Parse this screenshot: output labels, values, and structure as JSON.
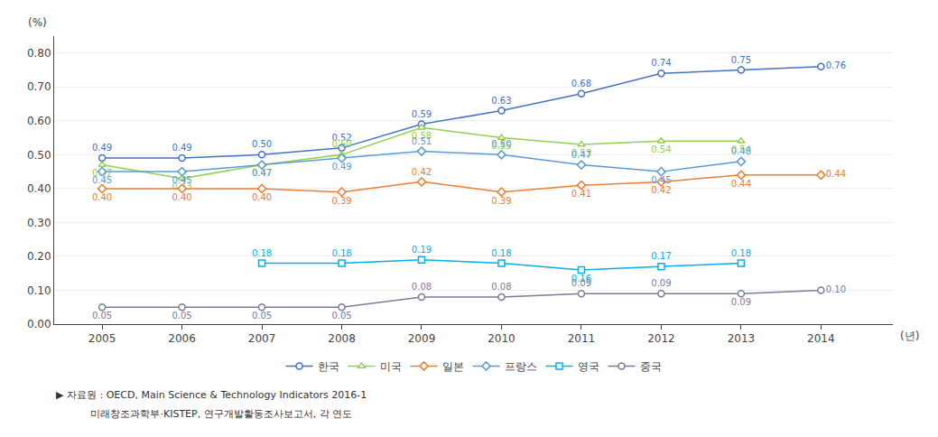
{
  "chart_data": {
    "type": "line",
    "ylabel": "(%)",
    "xlabel": "(년)",
    "annotations": [
      "▶ 자료원 : OECD, Main Science & Technology Indicators 2016-1",
      "           미래창조과학부·KISTEP, 연구개발활동조사보고서, 각 연도"
    ],
    "x": [
      2005,
      2006,
      2007,
      2008,
      2009,
      2010,
      2011,
      2012,
      2013,
      2014
    ],
    "xlim": [
      2004.4,
      2014.9
    ],
    "xticks": [
      2005,
      2006,
      2007,
      2008,
      2009,
      2010,
      2011,
      2012,
      2013,
      2014
    ],
    "ylim": [
      0.0,
      0.85
    ],
    "yticks": [
      {
        "value": 0.0,
        "label": "0.00"
      },
      {
        "value": 0.1,
        "label": "0.10"
      },
      {
        "value": 0.2,
        "label": "0.20"
      },
      {
        "value": 0.3,
        "label": "0.30"
      },
      {
        "value": 0.4,
        "label": "0.40"
      },
      {
        "value": 0.5,
        "label": "0.50"
      },
      {
        "value": 0.6,
        "label": "0.60"
      },
      {
        "value": 0.7,
        "label": "0.70"
      },
      {
        "value": 0.8,
        "label": "0.80"
      }
    ],
    "grid": "y",
    "legend": "bottom",
    "data_labels": true,
    "series": [
      {
        "name": "한국",
        "color": "#4472C4",
        "marker": "circle",
        "values": [
          0.49,
          0.49,
          0.5,
          0.52,
          0.59,
          0.63,
          0.68,
          0.74,
          0.75,
          0.76
        ],
        "value_labels": [
          "0.49",
          "0.49",
          "0.50",
          "0.52",
          "0.59",
          "0.63",
          "0.68",
          "0.74",
          "0.75",
          "0.76"
        ]
      },
      {
        "name": "미국",
        "color": "#92D050",
        "marker": "triangle-up",
        "values": [
          0.47,
          0.43,
          0.47,
          0.5,
          0.58,
          0.55,
          0.53,
          0.54,
          0.54,
          null
        ],
        "value_labels": [
          "0.47",
          "0.43",
          "0.47",
          "0.50",
          "0.58",
          "0.55",
          "0.53",
          "0.54",
          "0.54",
          null
        ]
      },
      {
        "name": "일본",
        "color": "#ED7D31",
        "marker": "diamond",
        "values": [
          0.4,
          0.4,
          0.4,
          0.39,
          0.42,
          0.39,
          0.41,
          0.42,
          0.44,
          0.44
        ],
        "value_labels": [
          "0.40",
          "0.40",
          "0.40",
          "0.39",
          "0.42",
          "0.39",
          "0.41",
          "0.42",
          "0.44",
          "0.44"
        ]
      },
      {
        "name": "프랑스",
        "color": "#5B9BD5",
        "marker": "diamond",
        "values": [
          0.45,
          0.45,
          0.47,
          0.49,
          0.51,
          0.5,
          0.47,
          0.45,
          0.48,
          null
        ],
        "value_labels": [
          "0.45",
          "0.45",
          "0.47",
          "0.49",
          "0.51",
          "0.50",
          "0.47",
          "0.45",
          "0.48",
          null
        ]
      },
      {
        "name": "영국",
        "color": "#00B0F0",
        "marker": "square",
        "values": [
          null,
          null,
          0.18,
          0.18,
          0.19,
          0.18,
          0.16,
          0.17,
          0.18,
          null
        ],
        "value_labels": [
          null,
          null,
          "0.18",
          "0.18",
          "0.19",
          "0.18",
          "0.16",
          "0.17",
          "0.18",
          null
        ]
      },
      {
        "name": "중국",
        "color": "#7B7B9B",
        "marker": "circle",
        "values": [
          0.05,
          0.05,
          0.05,
          0.05,
          0.08,
          0.08,
          0.09,
          0.09,
          0.09,
          0.1
        ],
        "value_labels": [
          "0.05",
          "0.05",
          "0.05",
          "0.05",
          "0.08",
          "0.08",
          "0.09",
          "0.09",
          "0.09",
          "0.10"
        ]
      }
    ]
  }
}
